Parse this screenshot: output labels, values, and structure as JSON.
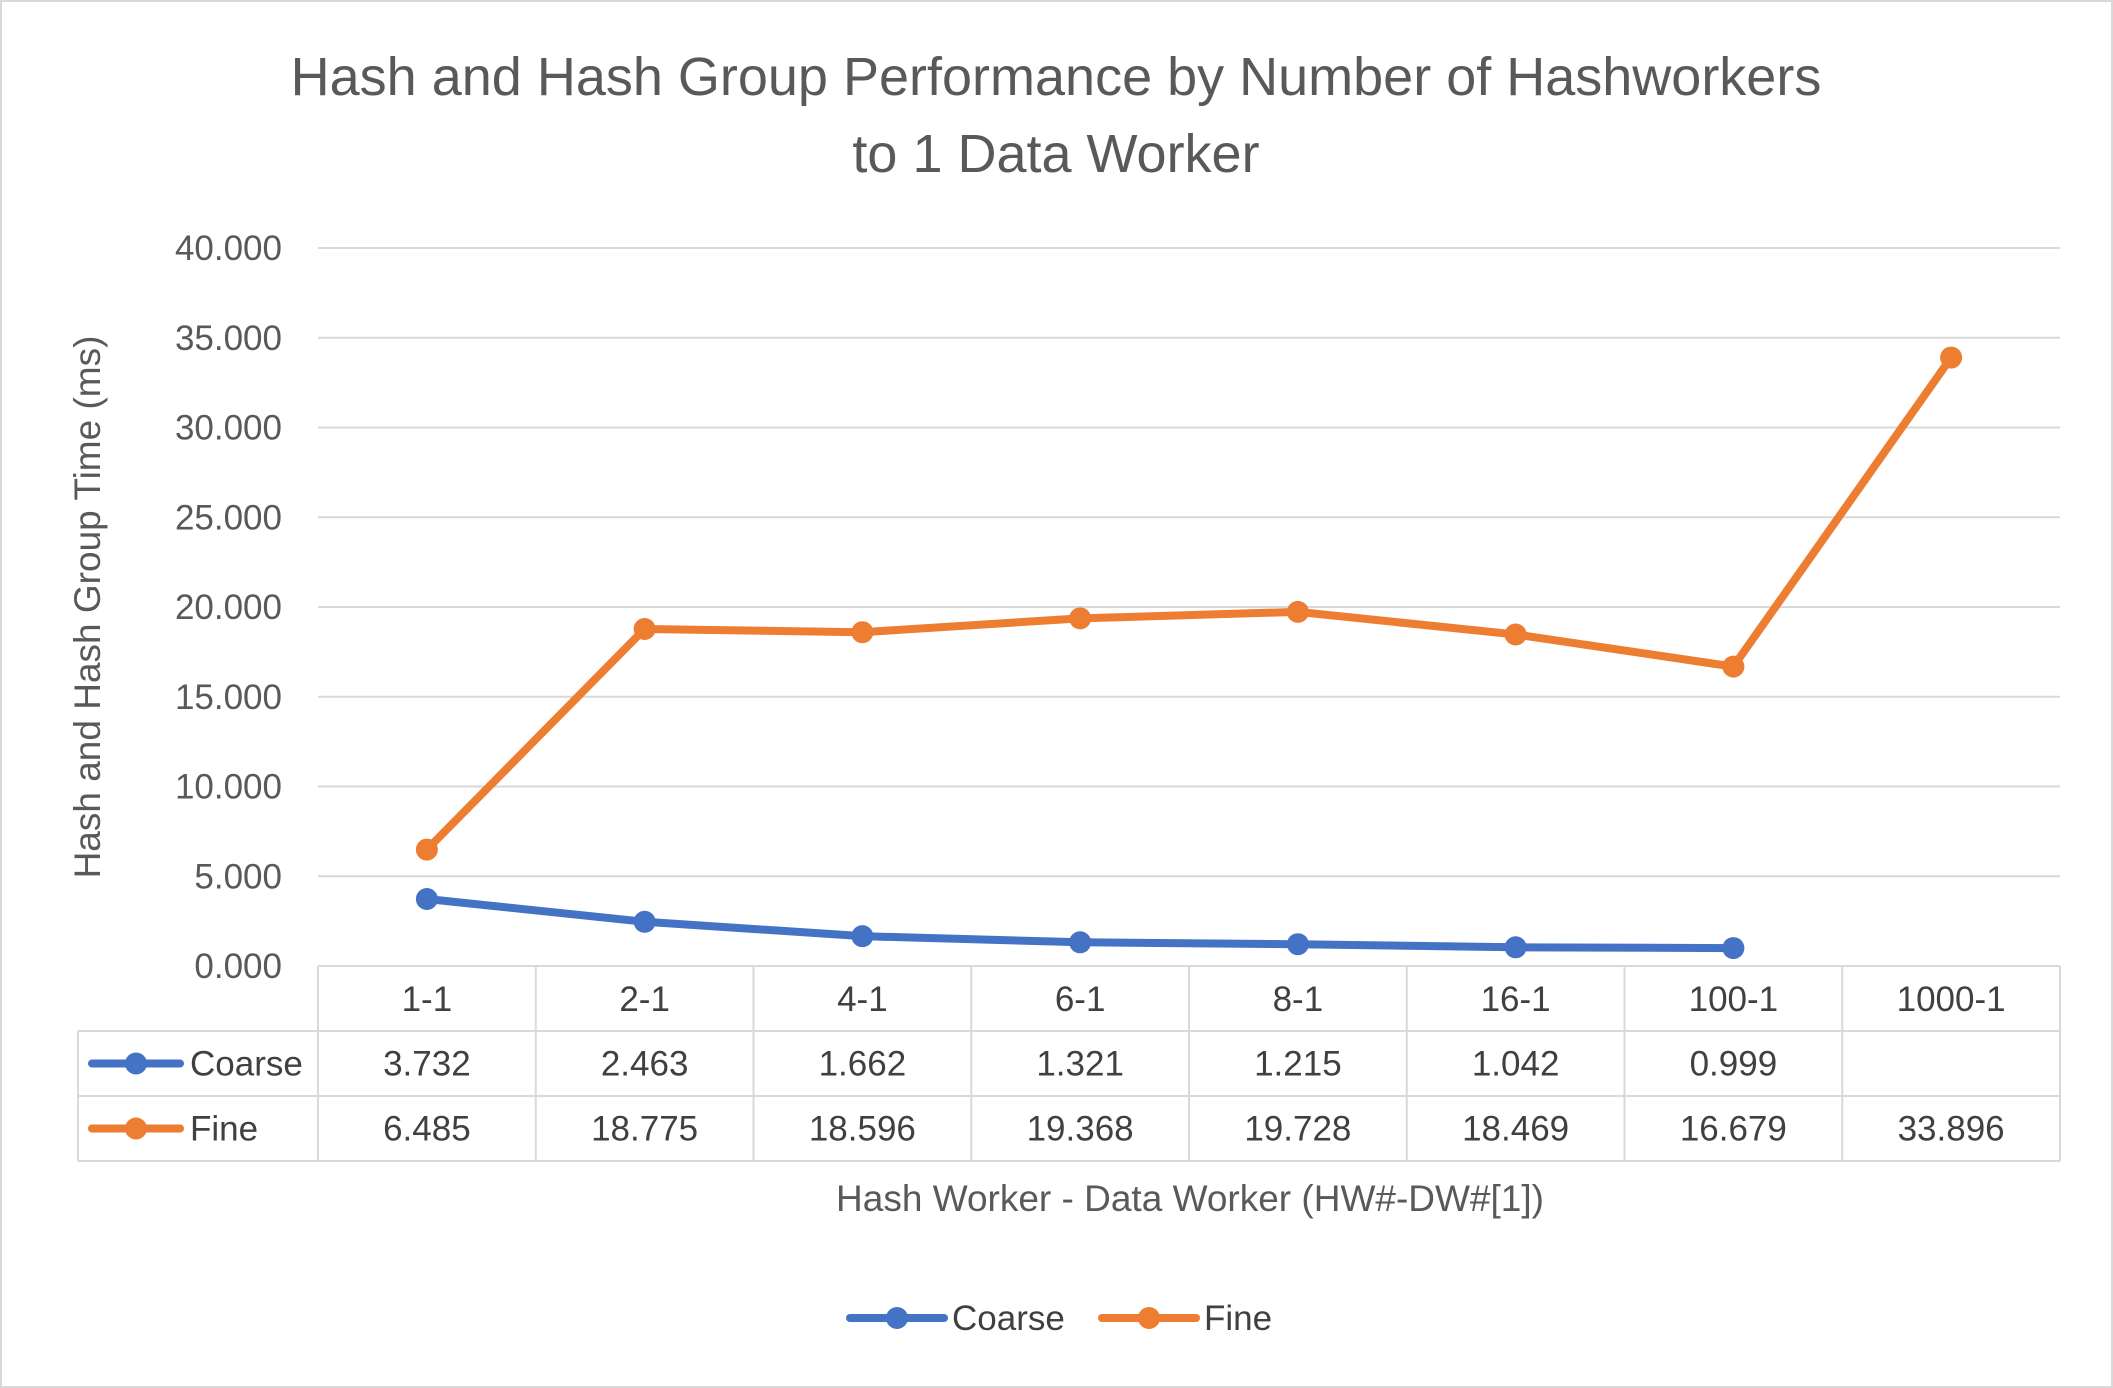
{
  "chart_data": {
    "type": "line",
    "title_lines": [
      "Hash and Hash Group Performance by Number of Hashworkers",
      "to 1 Data Worker"
    ],
    "xlabel": "Hash Worker - Data Worker (HW#-DW#[1])",
    "ylabel": "Hash and Hash Group Time (ms)",
    "ylim": [
      0,
      40
    ],
    "yticks": [
      "0.000",
      "5.000",
      "10.000",
      "15.000",
      "20.000",
      "25.000",
      "30.000",
      "35.000",
      "40.000"
    ],
    "categories": [
      "1-1",
      "2-1",
      "4-1",
      "6-1",
      "8-1",
      "16-1",
      "100-1",
      "1000-1"
    ],
    "grid": true,
    "legend_position": "bottom",
    "data_table": true,
    "series": [
      {
        "name": "Coarse",
        "color": "#4472c4",
        "values": [
          3.732,
          2.463,
          1.662,
          1.321,
          1.215,
          1.042,
          0.999,
          null
        ],
        "labels": [
          "3.732",
          "2.463",
          "1.662",
          "1.321",
          "1.215",
          "1.042",
          "0.999",
          ""
        ]
      },
      {
        "name": "Fine",
        "color": "#ed7d31",
        "values": [
          6.485,
          18.775,
          18.596,
          19.368,
          19.728,
          18.469,
          16.679,
          33.896
        ],
        "labels": [
          "6.485",
          "18.775",
          "18.596",
          "19.368",
          "19.728",
          "18.469",
          "16.679",
          "33.896"
        ]
      }
    ]
  }
}
